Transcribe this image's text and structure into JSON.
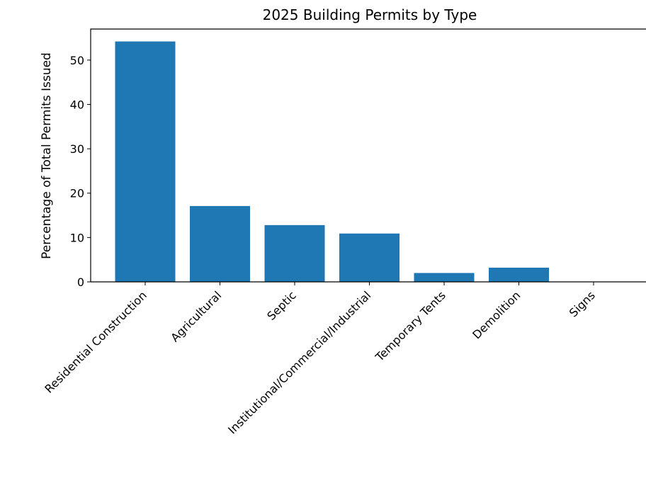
{
  "chart_data": {
    "type": "bar",
    "title": "2025 Building Permits by Type",
    "xlabel": "",
    "ylabel": "Percentage of Total Permits Issued",
    "categories": [
      "Residential Construction",
      "Agricultural",
      "Septic",
      "Institutional/Commercial/Industrial",
      "Temporary Tents",
      "Demolition",
      "Signs"
    ],
    "values": [
      54.2,
      17.1,
      12.8,
      10.9,
      2.0,
      3.2,
      0.0
    ],
    "ylim": [
      0,
      57
    ],
    "yticks": [
      0,
      10,
      20,
      30,
      40,
      50
    ],
    "grid": false,
    "legend": "none",
    "bar_color": "#1f77b4"
  }
}
